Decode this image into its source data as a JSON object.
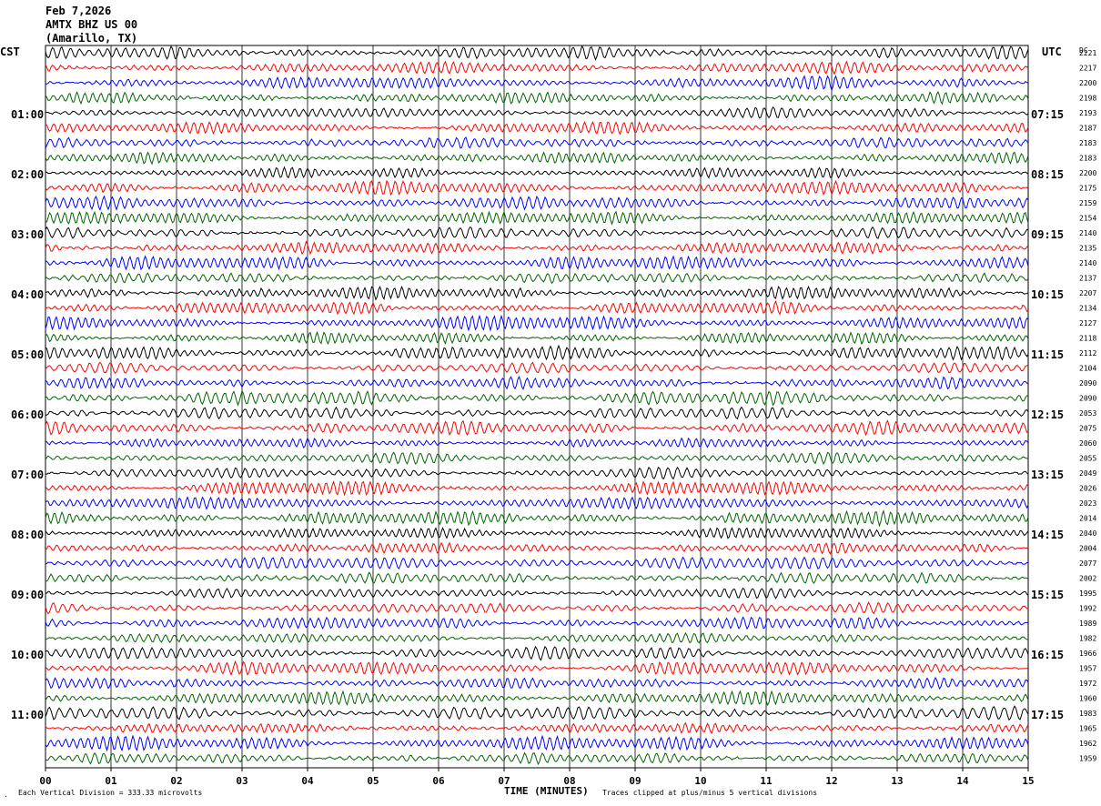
{
  "header": {
    "date": "Feb 7,2026",
    "station": "AMTX BHZ US 00",
    "location": "(Amarillo, TX)"
  },
  "left_timezone": "CST",
  "right_timezone": "UTC",
  "dc_header": "DC",
  "left_hour_labels": [
    "01:00",
    "02:00",
    "03:00",
    "04:00",
    "05:00",
    "06:00",
    "07:00",
    "08:00",
    "09:00",
    "10:00",
    "11:00"
  ],
  "right_hour_labels": [
    "07:15",
    "08:15",
    "09:15",
    "10:15",
    "11:15",
    "12:15",
    "13:15",
    "14:15",
    "15:15",
    "16:15",
    "17:15"
  ],
  "footer": {
    "scale_note": "Each Vertical Division =  333.33 microvolts",
    "xlabel": "TIME (MINUTES)",
    "clip_note": "Traces clipped at plus/minus 5 vertical divisions"
  },
  "colors": {
    "trace_cycle": [
      "#000000",
      "#ff0000",
      "#0000ff",
      "#006400"
    ],
    "grid": "#000000"
  },
  "chart_data": {
    "type": "line",
    "description_of_axes": "helicorder: 48 traces of 15 minutes each, minutes on x axis",
    "x_ticks": [
      "00",
      "01",
      "02",
      "03",
      "04",
      "05",
      "06",
      "07",
      "08",
      "09",
      "10",
      "11",
      "12",
      "13",
      "14",
      "15"
    ],
    "xlim": [
      0,
      15
    ],
    "trace_count": 48,
    "dc_offsets": [
      "2221",
      "2217",
      "2200",
      "2198",
      "2193",
      "2187",
      "2183",
      "2183",
      "2200",
      "2175",
      "2159",
      "2154",
      "2140",
      "2135",
      "2140",
      "2137",
      "2207",
      "2134",
      "2127",
      "2118",
      "2112",
      "2104",
      "2090",
      "2090",
      "2053",
      "2075",
      "2060",
      "2055",
      "2049",
      "2026",
      "2023",
      "2014",
      "2040",
      "2004",
      "2077",
      "2002",
      "1995",
      "1992",
      "1989",
      "1982",
      "1966",
      "1957",
      "1972",
      "1960",
      "1983",
      "1965",
      "1962",
      "1959"
    ]
  }
}
